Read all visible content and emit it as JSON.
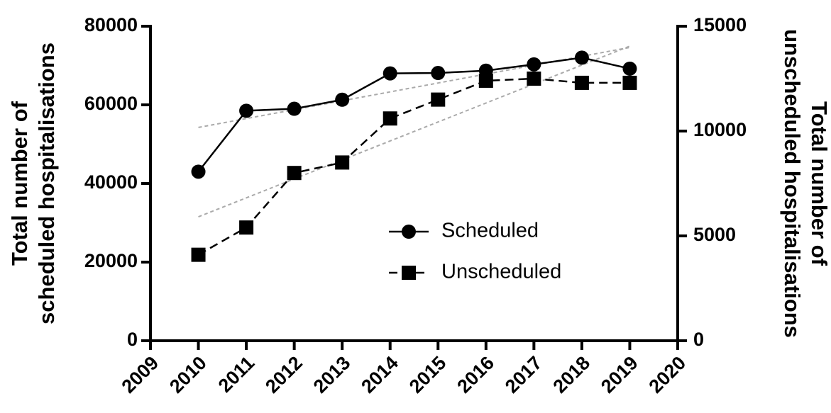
{
  "chart_data": {
    "type": "line",
    "ylabel": [
      "Total number of",
      "scheduled hospitalisations"
    ],
    "y2label": [
      "Total number of",
      "unscheduled hospitalisations"
    ],
    "x": [
      2010,
      2011,
      2012,
      2013,
      2014,
      2015,
      2016,
      2017,
      2018,
      2019
    ],
    "xlim": [
      2009,
      2020
    ],
    "xticks": [
      2009,
      2010,
      2011,
      2012,
      2013,
      2014,
      2015,
      2016,
      2017,
      2018,
      2019,
      2020
    ],
    "ylim": [
      0,
      80000
    ],
    "yticks": [
      0,
      20000,
      40000,
      60000,
      80000
    ],
    "y2lim": [
      0,
      15000
    ],
    "y2ticks": [
      0,
      5000,
      10000,
      15000
    ],
    "series": [
      {
        "name": "Scheduled",
        "color": "#000000",
        "marker": "circle",
        "dashed": false,
        "values": [
          43000,
          58500,
          59000,
          61300,
          68000,
          68100,
          68700,
          70300,
          72000,
          69200
        ]
      },
      {
        "name": "Unscheduled",
        "color": "#000000",
        "marker": "square",
        "dashed": true,
        "axis": "y2",
        "values": [
          4100,
          5400,
          8000,
          8500,
          10600,
          11500,
          12400,
          12500,
          12300,
          12300
        ]
      }
    ],
    "trendlines": [
      {
        "x": [
          2010,
          2019
        ],
        "values": [
          54250,
          74600
        ],
        "color": "#aaaaaa"
      },
      {
        "x": [
          2010,
          2019
        ],
        "values": [
          5910,
          14050
        ],
        "color": "#aaaaaa",
        "axis": "y2"
      }
    ]
  }
}
